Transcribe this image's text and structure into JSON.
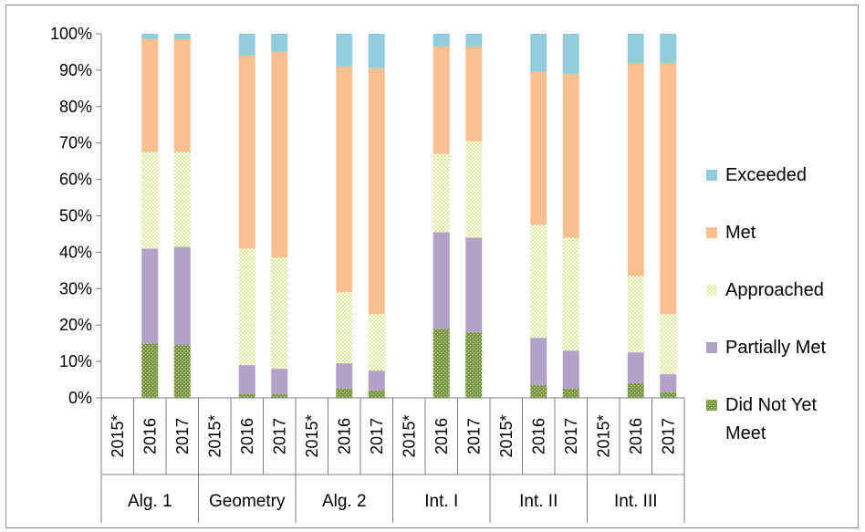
{
  "chart_data": {
    "type": "bar",
    "stacked": true,
    "title": "",
    "xlabel": "",
    "ylabel": "",
    "ylim": [
      0,
      100
    ],
    "y_ticks": [
      "0%",
      "10%",
      "20%",
      "30%",
      "40%",
      "50%",
      "60%",
      "70%",
      "80%",
      "90%",
      "100%"
    ],
    "grid": false,
    "legend_position": "right",
    "groups": [
      {
        "name": "Alg. 1",
        "years": [
          "2015*",
          "2016",
          "2017"
        ]
      },
      {
        "name": "Geometry",
        "years": [
          "2015*",
          "2016",
          "2017"
        ]
      },
      {
        "name": "Alg. 2",
        "years": [
          "2015*",
          "2016",
          "2017"
        ]
      },
      {
        "name": "Int. I",
        "years": [
          "2015*",
          "2016",
          "2017"
        ]
      },
      {
        "name": "Int. II",
        "years": [
          "2015*",
          "2016",
          "2017"
        ]
      },
      {
        "name": "Int. III",
        "years": [
          "2015*",
          "2016",
          "2017"
        ]
      }
    ],
    "categories": [
      "Alg. 1 2015*",
      "Alg. 1 2016",
      "Alg. 1 2017",
      "Geometry 2015*",
      "Geometry 2016",
      "Geometry 2017",
      "Alg. 2 2015*",
      "Alg. 2 2016",
      "Alg. 2 2017",
      "Int. I 2015*",
      "Int. I 2016",
      "Int. I 2017",
      "Int. II 2015*",
      "Int. II 2016",
      "Int. II 2017",
      "Int. III 2015*",
      "Int. III 2016",
      "Int. III 2017"
    ],
    "series": [
      {
        "name": "Did Not Yet Meet",
        "color": "#76923c",
        "pattern": "dots",
        "values": [
          0,
          15,
          14.5,
          0,
          1,
          1,
          0,
          2.5,
          2,
          0,
          19,
          18,
          0,
          3.5,
          2.5,
          0,
          4,
          1.5
        ]
      },
      {
        "name": "Partially Met",
        "color": "#b3a2c7",
        "pattern": "solid",
        "values": [
          0,
          26,
          27,
          0,
          8,
          7,
          0,
          7,
          5.5,
          0,
          26.5,
          26,
          0,
          13,
          10.5,
          0,
          8.5,
          5
        ]
      },
      {
        "name": "Approached",
        "color": "#f0f5c3",
        "pattern": "checker",
        "values": [
          0,
          26.5,
          26,
          0,
          32,
          30.5,
          0,
          19.5,
          15.5,
          0,
          21.5,
          26.5,
          0,
          31,
          31,
          0,
          21,
          16.5
        ]
      },
      {
        "name": "Met",
        "color": "#fac090",
        "pattern": "solid",
        "values": [
          0,
          31,
          31,
          0,
          53,
          56.5,
          0,
          62,
          67.5,
          0,
          29.5,
          26,
          0,
          42,
          45,
          0,
          58.5,
          69
        ]
      },
      {
        "name": "Exceeded",
        "color": "#92cddc",
        "pattern": "solid",
        "values": [
          0,
          1.5,
          1.5,
          0,
          6,
          5,
          0,
          9,
          9.5,
          0,
          3.5,
          3.5,
          0,
          10.5,
          11,
          0,
          8,
          8
        ]
      }
    ],
    "legend_order": [
      "Exceeded",
      "Met",
      "Approached",
      "Partially Met",
      "Did Not Yet Meet"
    ],
    "legend_lines": {
      "Did Not Yet Meet": [
        "Did Not Yet",
        "Meet"
      ]
    }
  }
}
